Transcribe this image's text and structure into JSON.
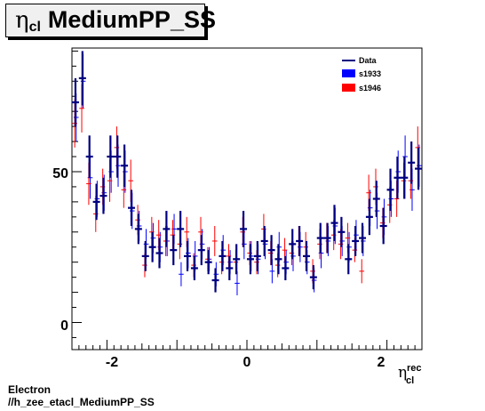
{
  "title": {
    "eta_symbol": "η",
    "sub": "cl",
    "text": "MediumPP_SS"
  },
  "footer": {
    "line1": "Electron",
    "line2": "//h_zee_etacl_MediumPP_SS"
  },
  "colors": {
    "data": "#000080",
    "s1933": "#0000ff",
    "s1946": "#ff0000"
  },
  "chart_data": {
    "type": "scatter",
    "xlabel": {
      "symbol": "η",
      "sub": "cl",
      "sup": "rec"
    },
    "ylabel": "",
    "xlim": [
      -2.5,
      2.5
    ],
    "ylim": [
      -9,
      91
    ],
    "x_ticks": [
      -2,
      0,
      2
    ],
    "x_tick_labels": [
      "-2",
      "0",
      "2"
    ],
    "y_ticks": [
      0,
      50
    ],
    "y_tick_labels": [
      "0",
      "50"
    ],
    "grid": false,
    "legend_position": "top-right",
    "bin_width": 0.1,
    "series": [
      {
        "name": "Data",
        "x": [
          -2.45,
          -2.35,
          -2.25,
          -2.15,
          -2.05,
          -1.95,
          -1.85,
          -1.75,
          -1.65,
          -1.55,
          -1.45,
          -1.35,
          -1.25,
          -1.15,
          -1.05,
          -0.95,
          -0.85,
          -0.75,
          -0.65,
          -0.55,
          -0.45,
          -0.35,
          -0.25,
          -0.15,
          -0.05,
          0.05,
          0.15,
          0.25,
          0.35,
          0.45,
          0.55,
          0.65,
          0.75,
          0.85,
          0.95,
          1.05,
          1.15,
          1.25,
          1.35,
          1.45,
          1.55,
          1.65,
          1.75,
          1.85,
          1.95,
          2.05,
          2.15,
          2.25,
          2.35,
          2.45
        ],
        "y": [
          73,
          81,
          55,
          40,
          42,
          55,
          55,
          52,
          38,
          31,
          22,
          25,
          23,
          31,
          24,
          31,
          22,
          18,
          24,
          20,
          14,
          22,
          18,
          21,
          31,
          21,
          22,
          27,
          24,
          21,
          18,
          26,
          27,
          22,
          15,
          28,
          28,
          33,
          30,
          21,
          27,
          28,
          35,
          41,
          32,
          44,
          48,
          48,
          53,
          51
        ],
        "err": [
          8,
          9,
          7,
          6,
          6,
          7,
          7,
          7,
          6,
          5,
          5,
          5,
          5,
          6,
          5,
          6,
          5,
          4,
          5,
          4,
          4,
          5,
          4,
          5,
          6,
          5,
          5,
          5,
          5,
          5,
          4,
          5,
          5,
          5,
          4,
          5,
          5,
          6,
          5,
          5,
          5,
          5,
          6,
          6,
          6,
          7,
          7,
          7,
          7,
          7
        ]
      },
      {
        "name": "s1933",
        "x": [
          -2.44,
          -2.34,
          -2.24,
          -2.14,
          -2.04,
          -1.94,
          -1.84,
          -1.74,
          -1.64,
          -1.54,
          -1.44,
          -1.34,
          -1.24,
          -1.14,
          -1.04,
          -0.94,
          -0.84,
          -0.74,
          -0.64,
          -0.54,
          -0.44,
          -0.34,
          -0.24,
          -0.14,
          -0.04,
          0.06,
          0.16,
          0.26,
          0.36,
          0.46,
          0.56,
          0.66,
          0.76,
          0.86,
          0.96,
          1.06,
          1.16,
          1.26,
          1.36,
          1.46,
          1.56,
          1.66,
          1.76,
          1.86,
          1.96,
          2.06,
          2.16,
          2.26,
          2.36,
          2.46
        ],
        "y": [
          68,
          80,
          48,
          41,
          43,
          50,
          52,
          50,
          37,
          32,
          26,
          28,
          25,
          27,
          31,
          16,
          23,
          22,
          26,
          21,
          16,
          24,
          20,
          13,
          26,
          22,
          21,
          26,
          17,
          25,
          20,
          22,
          25,
          20,
          14,
          23,
          27,
          32,
          27,
          25,
          29,
          27,
          38,
          37,
          35,
          41,
          50,
          55,
          44,
          52
        ],
        "err": [
          8,
          9,
          7,
          6,
          6,
          7,
          7,
          7,
          6,
          5,
          5,
          5,
          5,
          5,
          5,
          4,
          5,
          5,
          5,
          4,
          4,
          5,
          4,
          4,
          5,
          5,
          5,
          5,
          4,
          5,
          4,
          5,
          5,
          4,
          4,
          5,
          5,
          6,
          5,
          5,
          5,
          5,
          6,
          6,
          6,
          6,
          7,
          7,
          7,
          7
        ]
      },
      {
        "name": "s1946",
        "x": [
          -2.46,
          -2.36,
          -2.26,
          -2.16,
          -2.06,
          -1.96,
          -1.86,
          -1.76,
          -1.66,
          -1.56,
          -1.46,
          -1.36,
          -1.26,
          -1.16,
          -1.06,
          -0.96,
          -0.86,
          -0.76,
          -0.66,
          -0.56,
          -0.46,
          -0.36,
          -0.26,
          -0.16,
          -0.06,
          0.04,
          0.14,
          0.24,
          0.34,
          0.44,
          0.54,
          0.64,
          0.74,
          0.84,
          0.94,
          1.04,
          1.14,
          1.24,
          1.34,
          1.44,
          1.54,
          1.64,
          1.74,
          1.84,
          1.94,
          2.04,
          2.14,
          2.24,
          2.34,
          2.44
        ],
        "y": [
          66,
          71,
          46,
          36,
          45,
          47,
          58,
          44,
          47,
          34,
          19,
          30,
          29,
          27,
          29,
          26,
          30,
          19,
          30,
          21,
          27,
          20,
          22,
          20,
          30,
          23,
          20,
          31,
          23,
          19,
          24,
          23,
          27,
          25,
          17,
          26,
          28,
          29,
          26,
          28,
          24,
          17,
          43,
          45,
          33,
          39,
          41,
          47,
          47,
          58
        ],
        "err": [
          8,
          8,
          7,
          6,
          6,
          7,
          7,
          6,
          7,
          5,
          4,
          5,
          5,
          5,
          5,
          5,
          5,
          4,
          5,
          4,
          5,
          4,
          4,
          4,
          5,
          4,
          4,
          5,
          4,
          4,
          4,
          4,
          5,
          5,
          4,
          5,
          5,
          5,
          5,
          5,
          4,
          4,
          6,
          6,
          5,
          6,
          6,
          6,
          6,
          7
        ]
      }
    ]
  }
}
